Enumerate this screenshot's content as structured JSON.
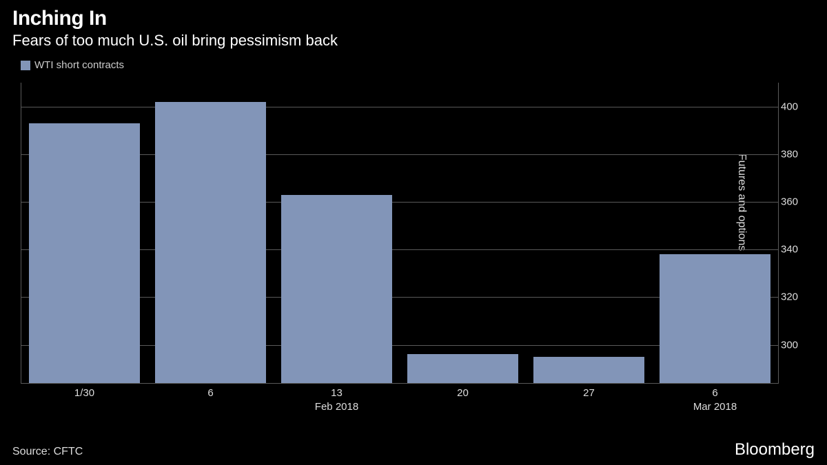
{
  "header": {
    "title": "Inching In",
    "subtitle": "Fears of too much U.S. oil bring pessimism back"
  },
  "legend": {
    "swatch_color": "#8295b8",
    "label": "WTI short contracts"
  },
  "chart": {
    "type": "bar",
    "background_color": "#000000",
    "grid_color": "#5a5a5a",
    "bar_color": "#8295b8",
    "bar_width_ratio": 0.88,
    "ylim": [
      284,
      410
    ],
    "ytick_step": 20,
    "yticks": [
      300,
      320,
      340,
      360,
      380,
      400
    ],
    "yaxis_label": "Futures and options (thousands)",
    "label_fontsize": 16,
    "tick_fontsize": 15,
    "categories": [
      "1/30",
      "6",
      "13",
      "20",
      "27",
      "6"
    ],
    "month_labels": [
      {
        "at_index": 2,
        "text": "Feb 2018"
      },
      {
        "at_index": 5,
        "text": "Mar 2018"
      }
    ],
    "values": [
      393,
      402,
      363,
      296,
      295,
      338
    ]
  },
  "footer": {
    "source": "Source: CFTC",
    "brand": "Bloomberg"
  }
}
